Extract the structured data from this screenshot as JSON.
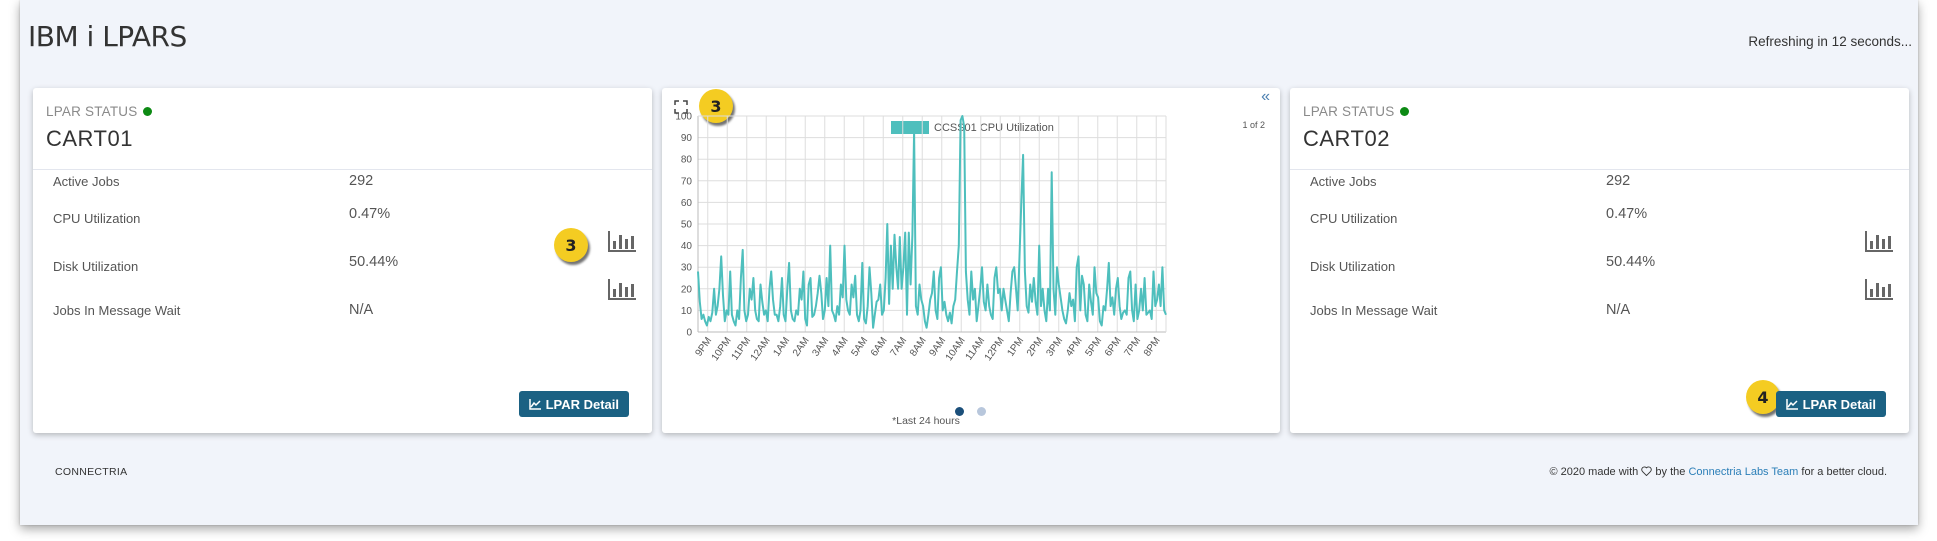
{
  "page": {
    "title": "IBM i LPARS",
    "refresh_text": "Refreshing in 12 seconds..."
  },
  "cards": [
    {
      "status_label": "LPAR STATUS",
      "status_color": "#0d8a14",
      "name": "CART01",
      "metrics": [
        {
          "label": "Active Jobs",
          "value": "292"
        },
        {
          "label": "CPU Utilization",
          "value": "0.47%"
        },
        {
          "label": "Disk Utilization",
          "value": "50.44%"
        },
        {
          "label": "Jobs In Message Wait",
          "value": "N/A"
        }
      ],
      "detail_button": "LPAR Detail",
      "badge": "3"
    },
    {
      "status_label": "LPAR STATUS",
      "status_color": "#0d8a14",
      "name": "CART02",
      "metrics": [
        {
          "label": "Active Jobs",
          "value": "292"
        },
        {
          "label": "CPU Utilization",
          "value": "0.47%"
        },
        {
          "label": "Disk Utilization",
          "value": "50.44%"
        },
        {
          "label": "Jobs In Message Wait",
          "value": "N/A"
        }
      ],
      "detail_button": "LPAR Detail",
      "badge": "4"
    }
  ],
  "chart_panel": {
    "badge": "3",
    "page_indicator": "1 of 2",
    "footnote": "*Last 24 hours",
    "icons": {
      "expand": "expand-icon",
      "collapse": "double-chevron-left-icon"
    }
  },
  "chart_data": {
    "type": "line",
    "title": "",
    "series": [
      {
        "name": "CCSS01 CPU Utilization",
        "color": "#4ebfbd",
        "values": [
          28,
          14,
          6,
          8,
          5,
          3,
          7,
          5,
          9,
          20,
          8,
          12,
          20,
          35,
          17,
          5,
          10,
          8,
          28,
          8,
          5,
          3,
          10,
          6,
          25,
          38,
          10,
          5,
          8,
          20,
          15,
          25,
          10,
          6,
          5,
          22,
          14,
          8,
          10,
          5,
          20,
          28,
          15,
          8,
          8,
          5,
          12,
          25,
          8,
          5,
          20,
          32,
          10,
          6,
          5,
          10,
          8,
          20,
          15,
          28,
          6,
          3,
          22,
          25,
          7,
          8,
          12,
          18,
          26,
          18,
          6,
          10,
          25,
          12,
          40,
          10,
          8,
          5,
          12,
          8,
          22,
          16,
          40,
          15,
          10,
          8,
          22,
          16,
          26,
          8,
          5,
          10,
          32,
          6,
          4,
          12,
          30,
          18,
          2,
          8,
          14,
          15,
          22,
          8,
          10,
          25,
          50,
          13,
          40,
          20,
          45,
          30,
          20,
          44,
          20,
          30,
          46,
          8,
          46,
          22,
          45,
          93,
          12,
          8,
          22,
          15,
          12,
          5,
          2,
          8,
          15,
          18,
          28,
          10,
          6,
          25,
          30,
          10,
          14,
          8,
          5,
          9,
          4,
          12,
          15,
          28,
          40,
          98,
          100,
          95,
          28,
          15,
          8,
          28,
          15,
          20,
          5,
          12,
          20,
          30,
          14,
          10,
          22,
          12,
          8,
          6,
          25,
          30,
          18,
          20,
          10,
          20,
          15,
          10,
          5,
          18,
          28,
          30,
          20,
          10,
          35,
          60,
          82,
          28,
          12,
          9,
          22,
          14,
          25,
          14,
          8,
          40,
          12,
          20,
          10,
          5,
          20,
          10,
          74,
          20,
          8,
          30,
          22,
          16,
          10,
          6,
          4,
          10,
          18,
          12,
          15,
          5,
          30,
          35,
          10,
          26,
          22,
          8,
          5,
          22,
          14,
          8,
          30,
          18,
          16,
          5,
          3,
          12,
          10,
          20,
          32,
          12,
          16,
          8,
          20,
          25,
          12,
          6,
          9,
          10,
          8,
          25,
          28,
          10,
          5,
          22,
          6,
          10,
          20,
          10,
          25,
          8,
          9,
          10,
          6,
          28,
          12,
          15,
          22,
          12,
          30,
          10,
          8
        ]
      }
    ],
    "x_ticks": [
      "9PM",
      "10PM",
      "11PM",
      "12AM",
      "1AM",
      "2AM",
      "3AM",
      "4AM",
      "5AM",
      "6AM",
      "7AM",
      "8AM",
      "9AM",
      "10AM",
      "11AM",
      "12PM",
      "1PM",
      "2PM",
      "3PM",
      "4PM",
      "5PM",
      "6PM",
      "7PM",
      "8PM"
    ],
    "y_ticks": [
      0,
      10,
      20,
      30,
      40,
      50,
      60,
      70,
      80,
      90,
      100
    ],
    "ylim": [
      0,
      100
    ],
    "grid": true,
    "legend_position": "top"
  },
  "footer": {
    "brand": "CONNECTRIA",
    "credit_prefix": "© 2020 made with",
    "credit_by": "by the",
    "credit_link": "Connectria Labs Team",
    "credit_suffix": "for a better cloud."
  }
}
